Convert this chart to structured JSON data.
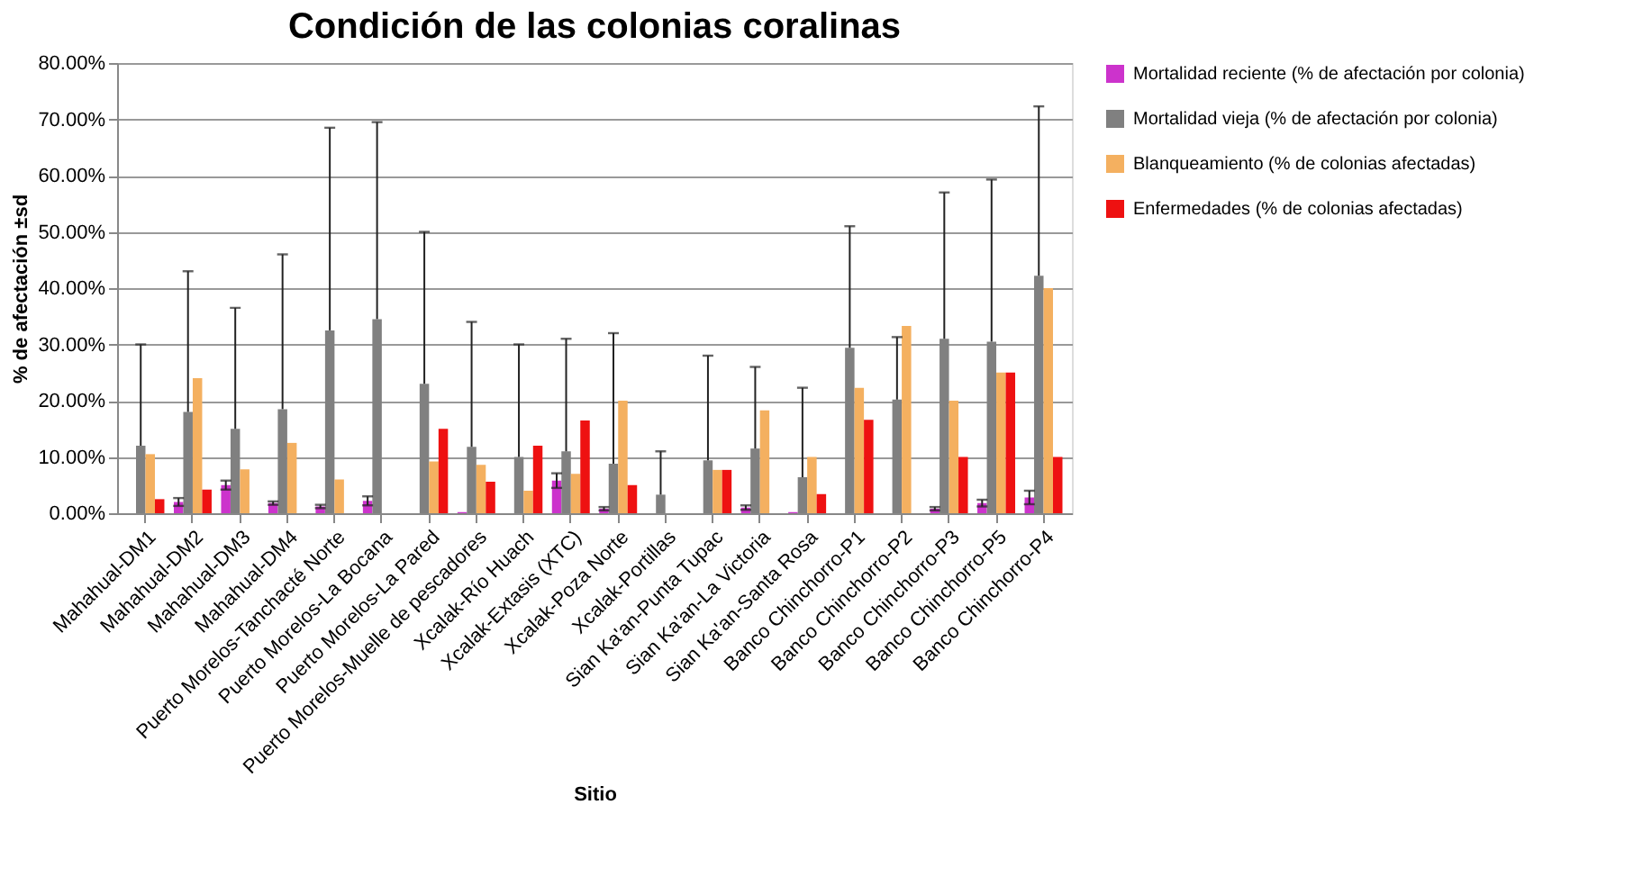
{
  "chart_data": {
    "type": "bar",
    "title": "Condición de las colonias coralinas",
    "xlabel": "Sitio",
    "ylabel": "% de afectación ±sd",
    "categories": [
      "Mahahual-DM1",
      "Mahahual-DM2",
      "Mahahual-DM3",
      "Mahahual-DM4",
      "Puerto Morelos-Tanchacté Norte",
      "Puerto Morelos-La Bocana",
      "Puerto Morelos-La Pared",
      "Puerto Morelos-Muelle de pescadores",
      "Xcalak-Río Huach",
      "Xcalak-Extasis (XTC)",
      "Xcalak-Poza Norte",
      "Xcalak-Portillas",
      "Sian Ka'an-Punta Tupac",
      "Sian Ka'an-La Victoria",
      "Sian Ka'an-Santa Rosa",
      "Banco Chinchorro-P1",
      "Banco Chinchorro-P2",
      "Banco Chinchorro-P3",
      "Banco Chinchorro-P5",
      "Banco Chinchorro-P4"
    ],
    "series": [
      {
        "name": "Mortalidad reciente (% de afectación por colonia)",
        "color": "#cc33cc",
        "values": [
          null,
          2,
          5,
          1.8,
          1.2,
          2.2,
          null,
          0.2,
          null,
          5.8,
          0.8,
          null,
          null,
          1,
          0.2,
          null,
          null,
          0.8,
          1.8,
          2.8
        ],
        "errors": [
          null,
          0.7,
          0.8,
          0.3,
          0.3,
          0.8,
          null,
          null,
          null,
          1.3,
          0.3,
          null,
          null,
          0.4,
          null,
          null,
          null,
          0.3,
          0.6,
          1.2
        ]
      },
      {
        "name": "Mortalidad vieja (% de afectación por colonia)",
        "color": "#808080",
        "values": [
          12,
          18,
          15,
          18.5,
          32.5,
          34.5,
          23,
          11.8,
          10,
          11,
          8.8,
          3.3,
          9.4,
          11.5,
          6.4,
          29.4,
          20.2,
          31,
          30.5,
          42.2
        ],
        "errors": [
          [
            12,
            30
          ],
          [
            18,
            43
          ],
          [
            15,
            36.5
          ],
          [
            18.5,
            46
          ],
          [
            32.5,
            68.5
          ],
          [
            34.5,
            69.5
          ],
          [
            23,
            50
          ],
          [
            11.8,
            34
          ],
          [
            10,
            30
          ],
          [
            11,
            31
          ],
          [
            8.8,
            32
          ],
          [
            3.3,
            11
          ],
          [
            9.4,
            28
          ],
          [
            11.5,
            26
          ],
          [
            6.4,
            22.3
          ],
          [
            29.4,
            51
          ],
          [
            20.2,
            31.3
          ],
          [
            31,
            57
          ],
          [
            30.5,
            59.3
          ],
          [
            42.2,
            72.3
          ]
        ]
      },
      {
        "name": "Blanqueamiento (% de colonias afectadas)",
        "color": "#f4b060",
        "values": [
          10.5,
          24,
          7.8,
          12.5,
          6,
          null,
          9.2,
          8.6,
          4,
          7,
          20,
          null,
          7.7,
          18.3,
          10,
          22.3,
          33.3,
          20,
          25,
          40
        ]
      },
      {
        "name": "Enfermedades (% de colonias afectadas)",
        "color": "#ee1111",
        "values": [
          2.5,
          4.2,
          null,
          null,
          null,
          null,
          15,
          5.6,
          12,
          16.5,
          5,
          null,
          7.7,
          null,
          3.4,
          16.6,
          null,
          10,
          25,
          10
        ]
      }
    ],
    "ylim": [
      0,
      80
    ],
    "yticks": [
      {
        "value": 0,
        "label": "0.00%"
      },
      {
        "value": 10,
        "label": "10.00%"
      },
      {
        "value": 20,
        "label": "20.00%"
      },
      {
        "value": 30,
        "label": "30.00%"
      },
      {
        "value": 40,
        "label": "40.00%"
      },
      {
        "value": 50,
        "label": "50.00%"
      },
      {
        "value": 60,
        "label": "60.00%"
      },
      {
        "value": 70,
        "label": "70.00%"
      },
      {
        "value": 80,
        "label": "80.00%"
      }
    ],
    "grid": "y",
    "legend": "right"
  }
}
